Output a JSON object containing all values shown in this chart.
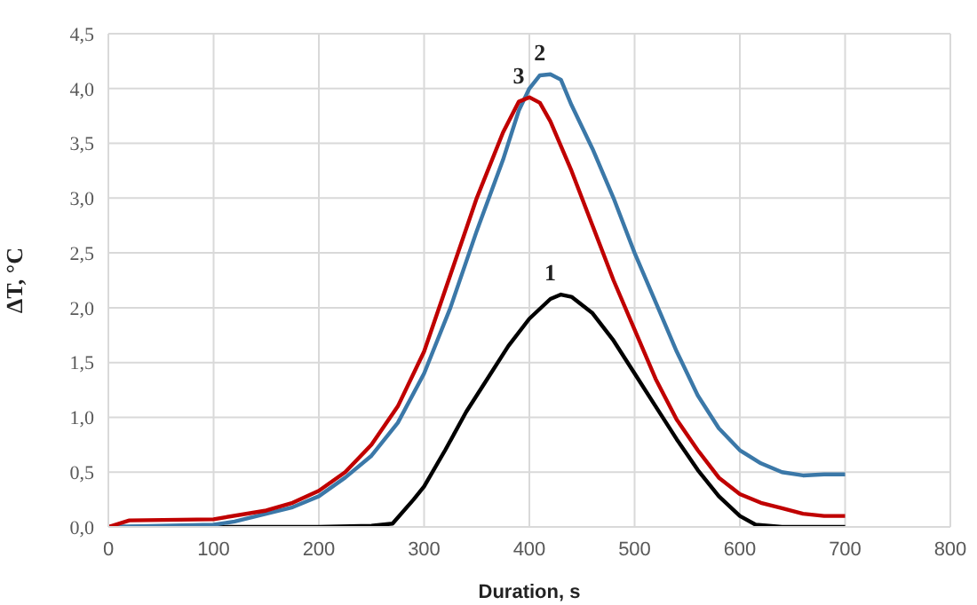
{
  "chart_data": {
    "type": "line",
    "xlabel": "Duration, s",
    "ylabel": "ΔT, °C",
    "xlim": [
      0,
      800
    ],
    "xticks": [
      0,
      100,
      200,
      300,
      400,
      500,
      600,
      700,
      800
    ],
    "ylim": [
      0,
      4.5
    ],
    "yticks": [
      {
        "value": 0,
        "label": "0,0"
      },
      {
        "value": 0.5,
        "label": "0,5"
      },
      {
        "value": 1,
        "label": "1,0"
      },
      {
        "value": 1.5,
        "label": "1,5"
      },
      {
        "value": 2,
        "label": "2,0"
      },
      {
        "value": 2.5,
        "label": "2,5"
      },
      {
        "value": 3,
        "label": "3,0"
      },
      {
        "value": 3.5,
        "label": "3,5"
      },
      {
        "value": 4,
        "label": "4,0"
      },
      {
        "value": 4.5,
        "label": "4,5"
      }
    ],
    "grid": true,
    "legend": false,
    "marker": "none",
    "line_style": "solid",
    "series": [
      {
        "name": "1",
        "color": "#000000",
        "x": [
          0,
          100,
          200,
          250,
          270,
          290,
          300,
          320,
          340,
          360,
          380,
          400,
          420,
          430,
          440,
          460,
          480,
          500,
          520,
          540,
          560,
          580,
          600,
          615,
          640,
          700
        ],
        "values": [
          0,
          0,
          0,
          0.01,
          0.03,
          0.25,
          0.37,
          0.7,
          1.05,
          1.35,
          1.65,
          1.9,
          2.08,
          2.12,
          2.1,
          1.95,
          1.7,
          1.4,
          1.1,
          0.8,
          0.52,
          0.28,
          0.1,
          0.02,
          0,
          0
        ]
      },
      {
        "name": "2",
        "color": "#3b78a8",
        "x": [
          0,
          100,
          120,
          150,
          175,
          200,
          225,
          250,
          275,
          300,
          325,
          350,
          375,
          390,
          400,
          410,
          420,
          430,
          440,
          460,
          480,
          500,
          520,
          540,
          560,
          580,
          600,
          620,
          640,
          660,
          680,
          700
        ],
        "values": [
          0,
          0.02,
          0.05,
          0.12,
          0.18,
          0.28,
          0.45,
          0.65,
          0.95,
          1.4,
          2.0,
          2.7,
          3.35,
          3.8,
          4.0,
          4.12,
          4.13,
          4.08,
          3.85,
          3.45,
          3.0,
          2.5,
          2.05,
          1.6,
          1.2,
          0.9,
          0.7,
          0.58,
          0.5,
          0.47,
          0.48,
          0.48
        ]
      },
      {
        "name": "3",
        "color": "#c00000",
        "x": [
          0,
          20,
          100,
          150,
          175,
          200,
          225,
          250,
          275,
          300,
          325,
          350,
          375,
          390,
          400,
          410,
          420,
          440,
          460,
          480,
          500,
          520,
          540,
          560,
          580,
          600,
          620,
          640,
          660,
          680,
          700
        ],
        "values": [
          0,
          0.06,
          0.07,
          0.15,
          0.22,
          0.33,
          0.5,
          0.75,
          1.1,
          1.6,
          2.3,
          3.0,
          3.6,
          3.88,
          3.92,
          3.87,
          3.7,
          3.25,
          2.75,
          2.25,
          1.8,
          1.35,
          0.98,
          0.7,
          0.45,
          0.3,
          0.22,
          0.17,
          0.12,
          0.1,
          0.1
        ]
      }
    ]
  }
}
